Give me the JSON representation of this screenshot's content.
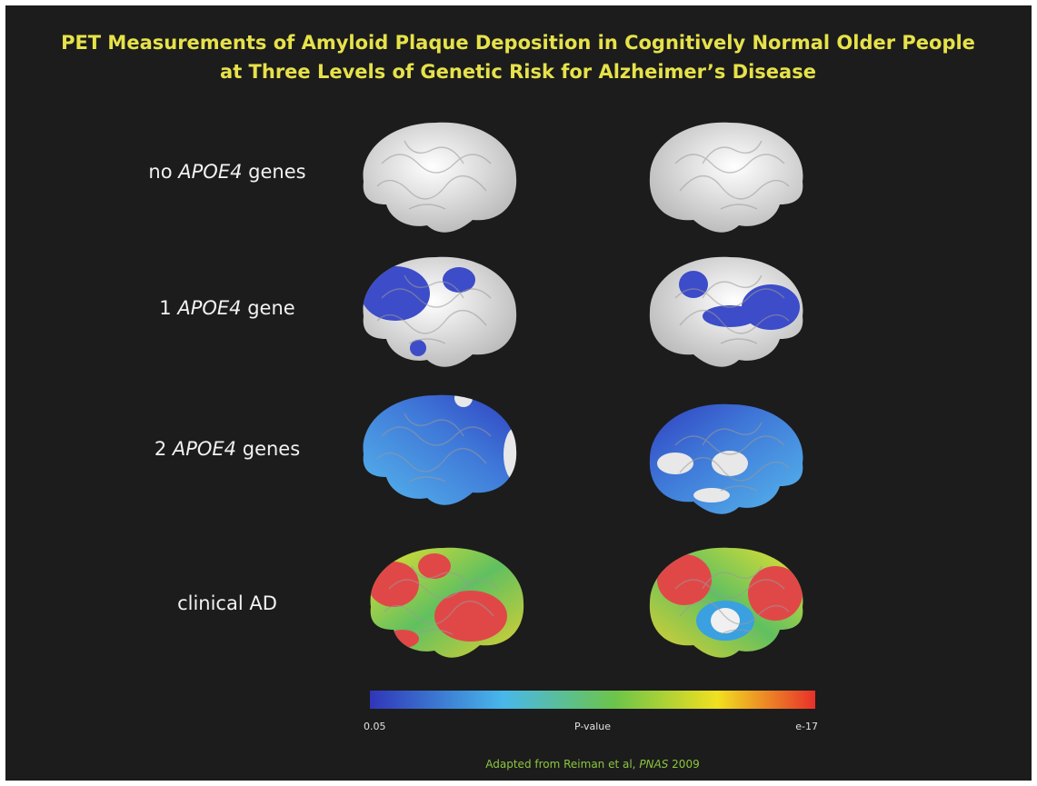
{
  "header": {
    "title_lines": [
      "PET Measurements of Amyloid Plaque Deposition in Cognitively Normal Older People",
      "at Three Levels of Genetic Risk for Alzheimer’s Disease"
    ]
  },
  "rows": [
    {
      "segments": [
        {
          "text": "no "
        },
        {
          "text": "APOE4",
          "italic": true
        },
        {
          "text": " genes"
        }
      ]
    },
    {
      "segments": [
        {
          "text": "1 "
        },
        {
          "text": "APOE4",
          "italic": true
        },
        {
          "text": " gene"
        }
      ]
    },
    {
      "segments": [
        {
          "text": "2 "
        },
        {
          "text": "APOE4",
          "italic": true
        },
        {
          "text": " genes"
        }
      ]
    },
    {
      "segments": [
        {
          "text": "clinical AD"
        }
      ]
    }
  ],
  "colorbar": {
    "low_label": "0.05",
    "title": "P-value",
    "high_label": "e-17"
  },
  "citation": {
    "segments": [
      {
        "text": "Adapted from Reiman et al, "
      },
      {
        "text": "PNAS",
        "italic": true
      },
      {
        "text": " 2009"
      }
    ]
  }
}
